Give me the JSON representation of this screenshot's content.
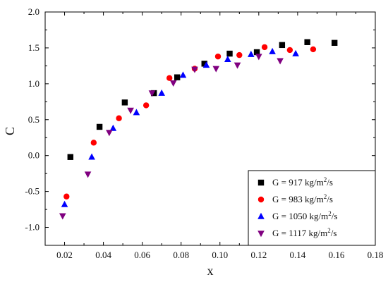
{
  "chart_data": {
    "type": "scatter",
    "xlabel": "x",
    "ylabel": "C",
    "xlim": [
      0.01,
      0.18
    ],
    "ylim": [
      -1.25,
      2.0
    ],
    "xticks": [
      "0.02",
      "0.04",
      "0.06",
      "0.08",
      "0.10",
      "0.12",
      "0.14",
      "0.16",
      "0.18"
    ],
    "yticks": [
      "-1.0",
      "-0.5",
      "0.0",
      "0.5",
      "1.0",
      "1.5",
      "2.0"
    ],
    "legend_position": "bottom-right",
    "grid": false,
    "series": [
      {
        "name": "G = 917 kg/m²/s",
        "label_prefix": "G = 917 kg/m",
        "label_sup": "2",
        "label_suffix": "/s",
        "marker": "square",
        "color": "#000000",
        "x": [
          0.023,
          0.038,
          0.051,
          0.066,
          0.078,
          0.092,
          0.105,
          0.119,
          0.132,
          0.145,
          0.159
        ],
        "y": [
          -0.02,
          0.4,
          0.74,
          0.87,
          1.09,
          1.28,
          1.42,
          1.44,
          1.54,
          1.58,
          1.57
        ]
      },
      {
        "name": "G = 983 kg/m²/s",
        "label_prefix": "G = 983 kg/m",
        "label_sup": "2",
        "label_suffix": "/s",
        "marker": "circle",
        "color": "#ff0000",
        "x": [
          0.021,
          0.035,
          0.048,
          0.062,
          0.074,
          0.087,
          0.099,
          0.11,
          0.123,
          0.136,
          0.148
        ],
        "y": [
          -0.57,
          0.18,
          0.52,
          0.7,
          1.08,
          1.21,
          1.38,
          1.4,
          1.51,
          1.47,
          1.48
        ]
      },
      {
        "name": "G = 1050 kg/m²/s",
        "label_prefix": "G = 1050 kg/m",
        "label_sup": "2",
        "label_suffix": "/s",
        "marker": "triangle-up",
        "color": "#0000ff",
        "x": [
          0.02,
          0.034,
          0.045,
          0.057,
          0.07,
          0.081,
          0.093,
          0.104,
          0.116,
          0.127,
          0.139
        ],
        "y": [
          -0.68,
          -0.02,
          0.38,
          0.6,
          0.87,
          1.12,
          1.26,
          1.34,
          1.41,
          1.45,
          1.42
        ]
      },
      {
        "name": "G = 1117 kg/m²/s",
        "label_prefix": "G = 1117 kg/m",
        "label_sup": "2",
        "label_suffix": "/s",
        "marker": "triangle-down",
        "color": "#800080",
        "x": [
          0.019,
          0.032,
          0.043,
          0.054,
          0.065,
          0.076,
          0.087,
          0.098,
          0.109,
          0.12,
          0.131
        ],
        "y": [
          -0.84,
          -0.26,
          0.32,
          0.63,
          0.87,
          1.01,
          1.2,
          1.21,
          1.26,
          1.38,
          1.32
        ]
      }
    ]
  }
}
